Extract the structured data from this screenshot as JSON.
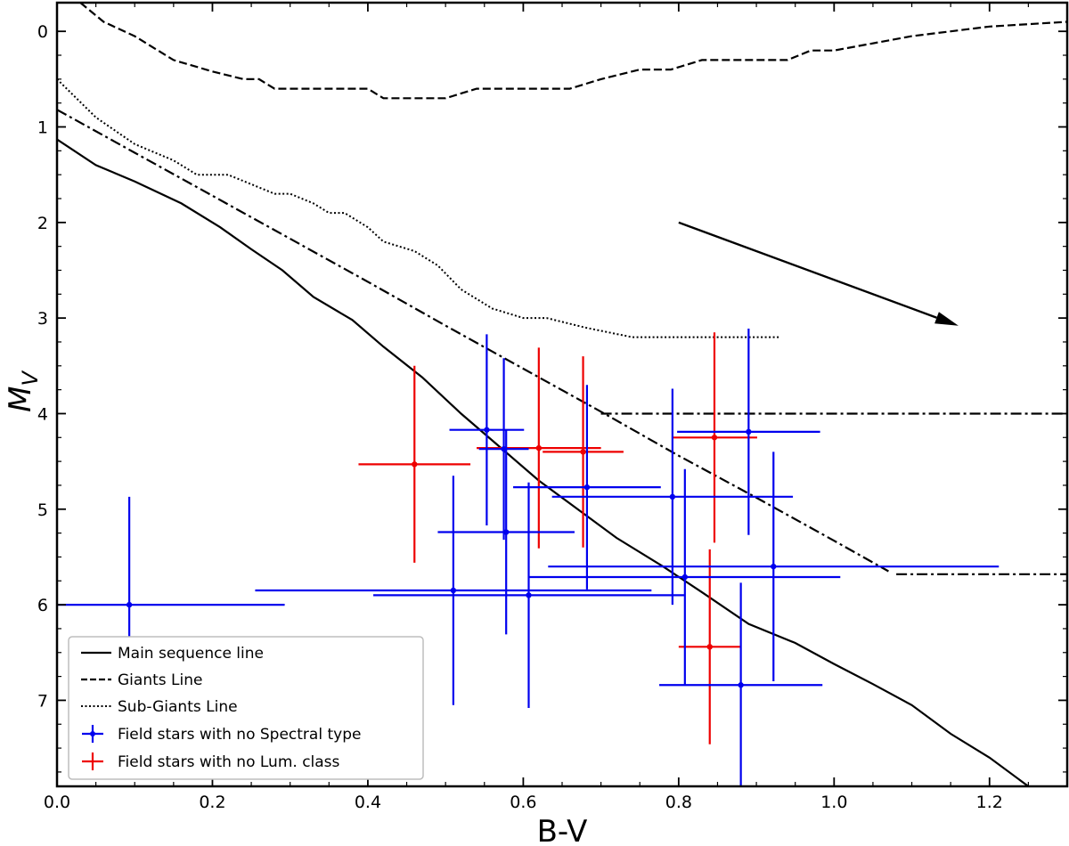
{
  "chart_data": {
    "type": "scatter",
    "xlabel": "B-V",
    "ylabel_main": "M",
    "ylabel_sub": "V",
    "xlim": [
      0.0,
      1.3
    ],
    "ylim": [
      7.9,
      -0.3
    ],
    "y_inverted": true,
    "xticks": [
      "0.0",
      "0.2",
      "0.4",
      "0.6",
      "0.8",
      "1.0",
      "1.2"
    ],
    "yticks": [
      "0",
      "1",
      "2",
      "3",
      "4",
      "5",
      "6",
      "7"
    ],
    "legend": {
      "placement": "lower-left",
      "entries": [
        "Main sequence line",
        "Giants Line",
        "Sub-Giants Line",
        "Field stars with no Spectral type",
        "Field stars with no Lum. class"
      ]
    },
    "colors": {
      "blue": "#0000ee",
      "red": "#ee0000",
      "line": "#000000"
    },
    "lines": [
      {
        "id": "main-sequence",
        "style": "solid",
        "points": [
          [
            0.0,
            1.13
          ],
          [
            0.05,
            1.4
          ],
          [
            0.1,
            1.57
          ],
          [
            0.16,
            1.8
          ],
          [
            0.21,
            2.05
          ],
          [
            0.25,
            2.28
          ],
          [
            0.29,
            2.5
          ],
          [
            0.33,
            2.78
          ],
          [
            0.38,
            3.02
          ],
          [
            0.42,
            3.3
          ],
          [
            0.47,
            3.62
          ],
          [
            0.52,
            4.0
          ],
          [
            0.57,
            4.35
          ],
          [
            0.62,
            4.7
          ],
          [
            0.67,
            5.0
          ],
          [
            0.72,
            5.3
          ],
          [
            0.78,
            5.6
          ],
          [
            0.83,
            5.87
          ],
          [
            0.89,
            6.2
          ],
          [
            0.95,
            6.4
          ],
          [
            1.0,
            6.62
          ],
          [
            1.05,
            6.83
          ],
          [
            1.1,
            7.05
          ],
          [
            1.15,
            7.35
          ],
          [
            1.2,
            7.6
          ],
          [
            1.25,
            7.9
          ]
        ]
      },
      {
        "id": "giants",
        "style": "dashed",
        "points": [
          [
            0.03,
            -0.3
          ],
          [
            0.06,
            -0.1
          ],
          [
            0.1,
            0.05
          ],
          [
            0.15,
            0.3
          ],
          [
            0.2,
            0.42
          ],
          [
            0.24,
            0.5
          ],
          [
            0.26,
            0.5
          ],
          [
            0.28,
            0.6
          ],
          [
            0.4,
            0.6
          ],
          [
            0.42,
            0.7
          ],
          [
            0.5,
            0.7
          ],
          [
            0.54,
            0.6
          ],
          [
            0.66,
            0.6
          ],
          [
            0.7,
            0.5
          ],
          [
            0.75,
            0.4
          ],
          [
            0.79,
            0.4
          ],
          [
            0.83,
            0.3
          ],
          [
            0.94,
            0.3
          ],
          [
            0.97,
            0.2
          ],
          [
            1.0,
            0.2
          ],
          [
            1.1,
            0.05
          ],
          [
            1.2,
            -0.05
          ],
          [
            1.3,
            -0.1
          ]
        ]
      },
      {
        "id": "sub-giants",
        "style": "dotted",
        "points": [
          [
            0.0,
            0.5
          ],
          [
            0.05,
            0.9
          ],
          [
            0.1,
            1.18
          ],
          [
            0.15,
            1.35
          ],
          [
            0.18,
            1.5
          ],
          [
            0.22,
            1.5
          ],
          [
            0.25,
            1.6
          ],
          [
            0.28,
            1.7
          ],
          [
            0.3,
            1.7
          ],
          [
            0.33,
            1.8
          ],
          [
            0.35,
            1.9
          ],
          [
            0.37,
            1.9
          ],
          [
            0.4,
            2.05
          ],
          [
            0.42,
            2.2
          ],
          [
            0.46,
            2.3
          ],
          [
            0.49,
            2.45
          ],
          [
            0.52,
            2.7
          ],
          [
            0.56,
            2.9
          ],
          [
            0.6,
            3.0
          ],
          [
            0.63,
            3.0
          ],
          [
            0.68,
            3.1
          ],
          [
            0.74,
            3.2
          ],
          [
            0.93,
            3.2
          ]
        ]
      },
      {
        "id": "dash-dot-diagonal",
        "style": "dashdot",
        "points": [
          [
            0.0,
            0.82
          ],
          [
            0.1,
            1.27
          ],
          [
            0.2,
            1.72
          ],
          [
            0.3,
            2.17
          ],
          [
            0.4,
            2.62
          ],
          [
            0.5,
            3.08
          ],
          [
            0.6,
            3.53
          ],
          [
            0.7,
            3.98
          ],
          [
            0.8,
            4.44
          ],
          [
            0.9,
            4.88
          ],
          [
            1.0,
            5.33
          ],
          [
            1.07,
            5.65
          ]
        ]
      },
      {
        "id": "dash-dot-horizontal-1",
        "style": "dashdot",
        "points": [
          [
            0.7,
            4.0
          ],
          [
            1.3,
            4.0
          ]
        ]
      },
      {
        "id": "dash-dot-horizontal-2",
        "style": "dashdot",
        "points": [
          [
            1.08,
            5.68
          ],
          [
            1.3,
            5.68
          ]
        ]
      }
    ],
    "arrow": {
      "from": [
        0.8,
        2.0
      ],
      "to": [
        1.16,
        3.08
      ]
    },
    "points_blue": [
      {
        "x": 0.093,
        "y": 6.0,
        "xerr": 0.2,
        "yerr": 1.13
      },
      {
        "x": 0.553,
        "y": 4.17,
        "xerr": 0.048,
        "yerr": 1.0
      },
      {
        "x": 0.575,
        "y": 4.37,
        "xerr": 0.032,
        "yerr": 0.95
      },
      {
        "x": 0.578,
        "y": 5.24,
        "xerr": 0.088,
        "yerr": 1.07
      },
      {
        "x": 0.51,
        "y": 5.85,
        "xerr": 0.255,
        "yerr": 1.2
      },
      {
        "x": 0.607,
        "y": 5.9,
        "xerr": 0.2,
        "yerr": 1.18
      },
      {
        "x": 0.682,
        "y": 4.77,
        "xerr": 0.095,
        "yerr": 1.07
      },
      {
        "x": 0.792,
        "y": 4.87,
        "xerr": 0.155,
        "yerr": 1.13
      },
      {
        "x": 0.808,
        "y": 5.71,
        "xerr": 0.2,
        "yerr": 1.13
      },
      {
        "x": 0.89,
        "y": 4.19,
        "xerr": 0.092,
        "yerr": 1.08
      },
      {
        "x": 0.922,
        "y": 5.6,
        "xerr": 0.29,
        "yerr": 1.2
      },
      {
        "x": 0.88,
        "y": 6.84,
        "xerr": 0.105,
        "yerr": 1.07
      }
    ],
    "points_red": [
      {
        "x": 0.46,
        "y": 4.53,
        "xerr": 0.072,
        "yerr": 1.03
      },
      {
        "x": 0.62,
        "y": 4.36,
        "xerr": 0.08,
        "yerr": 1.05
      },
      {
        "x": 0.677,
        "y": 4.4,
        "xerr": 0.052,
        "yerr": 1.0
      },
      {
        "x": 0.846,
        "y": 4.25,
        "xerr": 0.055,
        "yerr": 1.1
      },
      {
        "x": 0.84,
        "y": 6.44,
        "xerr": 0.04,
        "yerr": 1.02
      }
    ]
  }
}
